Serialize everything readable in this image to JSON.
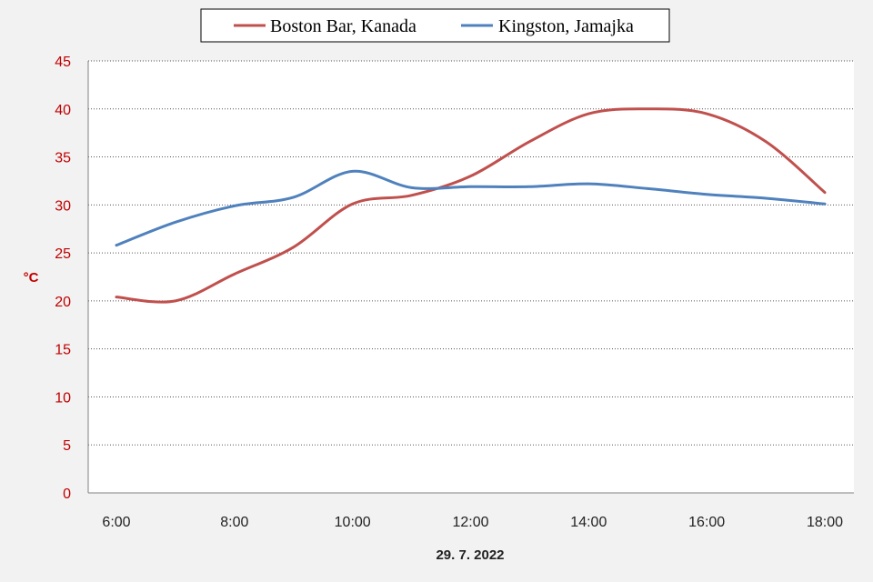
{
  "chart_data": {
    "type": "line",
    "x": [
      "6:00",
      "7:00",
      "8:00",
      "9:00",
      "10:00",
      "11:00",
      "12:00",
      "13:00",
      "14:00",
      "15:00",
      "16:00",
      "17:00",
      "18:00"
    ],
    "xticks": [
      "6:00",
      "8:00",
      "10:00",
      "12:00",
      "14:00",
      "16:00",
      "18:00"
    ],
    "xlabel": "29. 7. 2022",
    "ylabel": "°C",
    "ylim": [
      0,
      45
    ],
    "yticks": [
      0,
      5,
      10,
      15,
      20,
      25,
      30,
      35,
      40,
      45
    ],
    "grid": "horizontal-dotted",
    "legend_position": "top-center",
    "series": [
      {
        "name": "Boston Bar, Kanada",
        "color": "#c0504d",
        "values": [
          20.4,
          20.0,
          22.8,
          25.6,
          30.1,
          31.0,
          33.0,
          36.6,
          39.5,
          40.0,
          39.5,
          36.6,
          31.3
        ]
      },
      {
        "name": "Kingston, Jamajka",
        "color": "#4f81bd",
        "values": [
          25.8,
          28.2,
          29.9,
          30.8,
          33.5,
          31.8,
          31.9,
          31.9,
          32.2,
          31.7,
          31.1,
          30.7,
          30.1
        ]
      }
    ]
  }
}
